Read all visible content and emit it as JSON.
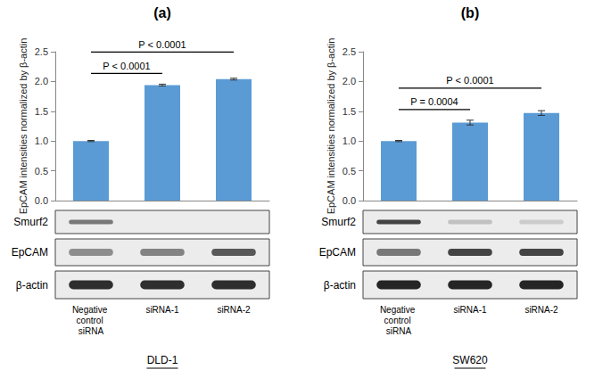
{
  "chart_data": [
    {
      "type": "bar",
      "panel": "(a)",
      "cell_line": "DLD-1",
      "ylabel": "EpCAM intensities normalized by β-actin",
      "categories": [
        "Negative control siRNA",
        "siRNA-1",
        "siRNA-2"
      ],
      "values": [
        1.0,
        1.94,
        2.04
      ],
      "errors": [
        0.01,
        0.015,
        0.015
      ],
      "color": "#5b9bd5",
      "ylim": [
        0,
        2.5
      ],
      "yticks": [
        {
          "value": 0,
          "label": "0.0"
        },
        0.5,
        {
          "value": 1,
          "label": "1.0"
        },
        1.5,
        {
          "value": 2,
          "label": "2.0"
        },
        2.5
      ],
      "grid": false,
      "tick_labels": "y",
      "annotations": [
        {
          "text": "P < 0.0001",
          "from": "Negative control siRNA",
          "to": "siRNA-1"
        },
        {
          "text": "P < 0.0001",
          "from": "Negative control siRNA",
          "to": "siRNA-2"
        }
      ],
      "blots": [
        "Smurf2",
        "EpCAM",
        "β-actin"
      ]
    },
    {
      "type": "bar",
      "panel": "(b)",
      "cell_line": "SW620",
      "ylabel": "EpCAM intensities normalized by β-actin",
      "categories": [
        "Negative control siRNA",
        "siRNA-1",
        "siRNA-2"
      ],
      "values": [
        1.0,
        1.31,
        1.47
      ],
      "errors": [
        0.01,
        0.04,
        0.04
      ],
      "color": "#5b9bd5",
      "ylim": [
        0,
        2.5
      ],
      "yticks": [
        {
          "value": 0,
          "label": "0.0"
        },
        0.5,
        {
          "value": 1,
          "label": "1.0"
        },
        1.5,
        {
          "value": 2,
          "label": "2.0"
        },
        2.5
      ],
      "grid": false,
      "tick_labels": "y",
      "annotations": [
        {
          "text": "P = 0.0004",
          "from": "Negative control siRNA",
          "to": "siRNA-1"
        },
        {
          "text": "P < 0.0001",
          "from": "Negative control siRNA",
          "to": "siRNA-2"
        }
      ],
      "blots": [
        "Smurf2",
        "EpCAM",
        "β-actin"
      ]
    }
  ]
}
